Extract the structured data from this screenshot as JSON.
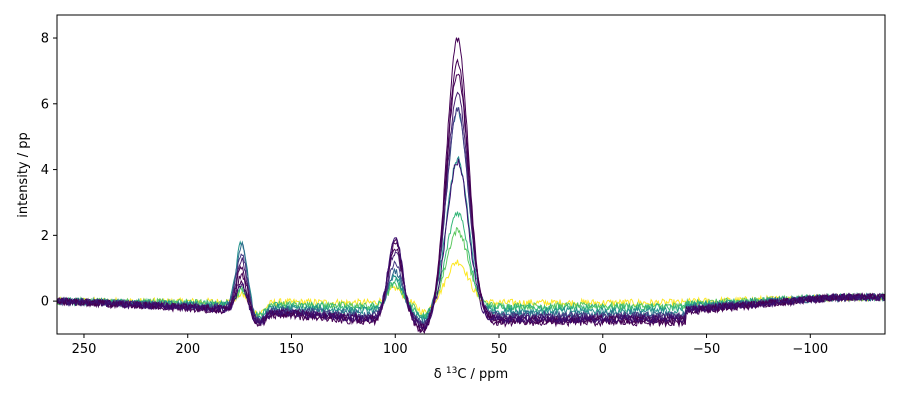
{
  "chart_data": {
    "type": "line",
    "title": "",
    "xlabel_prefix": "δ ",
    "xlabel_sup": "13",
    "xlabel_suffix": "C / ppm",
    "ylabel": "intensity / pp",
    "xlim": [
      263,
      -136
    ],
    "ylim": [
      -1.0,
      8.7
    ],
    "x_reversed": true,
    "grid": false,
    "legend": "none",
    "xticks": [
      250,
      200,
      150,
      100,
      50,
      0,
      -50,
      -100
    ],
    "xtick_labels": [
      "250",
      "200",
      "150",
      "100",
      "50",
      "0",
      "−50",
      "−100"
    ],
    "yticks": [
      0,
      2,
      4,
      6,
      8
    ],
    "ytick_labels": [
      "0",
      "2",
      "4",
      "6",
      "8"
    ],
    "colormap": "viridis (yellow → green → dark purple)",
    "peaks_ppm": [
      174,
      100,
      70
    ],
    "series": [
      {
        "color": "#fde725",
        "peak_174": 0.25,
        "peak_100": 0.45,
        "peak_70": 1.25,
        "baseline_region": -0.05
      },
      {
        "color": "#5ec962",
        "peak_174": 0.4,
        "peak_100": 0.65,
        "peak_70": 2.3,
        "baseline_region": -0.15
      },
      {
        "color": "#35b779",
        "peak_174": 0.55,
        "peak_100": 0.85,
        "peak_70": 2.9,
        "baseline_region": -0.2
      },
      {
        "color": "#21918c",
        "peak_174": 1.95,
        "peak_100": 1.05,
        "peak_70": 4.6,
        "baseline_region": -0.3
      },
      {
        "color": "#31688e",
        "peak_174": 1.9,
        "peak_100": 1.3,
        "peak_70": 6.2,
        "baseline_region": -0.4
      },
      {
        "color": "#443983",
        "peak_174": 1.7,
        "peak_100": 1.6,
        "peak_70": 6.3,
        "baseline_region": -0.45
      },
      {
        "color": "#481f70",
        "peak_174": 1.5,
        "peak_100": 2.0,
        "peak_70": 6.8,
        "baseline_region": -0.5
      },
      {
        "color": "#440154",
        "peak_174": 1.3,
        "peak_100": 2.2,
        "peak_70": 7.5,
        "baseline_region": -0.55
      },
      {
        "color": "#440154",
        "peak_174": 1.1,
        "peak_100": 2.4,
        "peak_70": 7.9,
        "baseline_region": -0.6
      },
      {
        "color": "#440154",
        "peak_174": 0.9,
        "peak_100": 2.55,
        "peak_70": 8.6,
        "baseline_region": -0.65
      },
      {
        "color": "#3b0f70",
        "peak_174": 0.8,
        "peak_100": 2.5,
        "peak_70": 4.8,
        "baseline_region": -0.55
      }
    ]
  }
}
